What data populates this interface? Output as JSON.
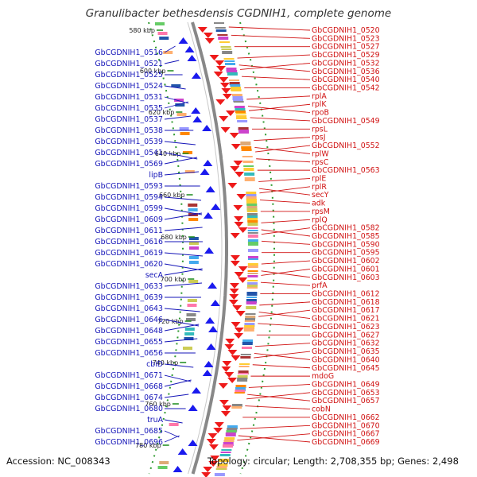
{
  "title": "Granulibacter bethesdensis CGDNIH1, complete genome",
  "footer": {
    "accession": "Accession: NC_008343",
    "summary": "Topology: circular; Length: 2,708,355 bp; Genes: 2,498"
  },
  "colors": {
    "left_label": "#1414b8",
    "right_label": "#d01010",
    "forward_arrow": "#1a1aee",
    "reverse_arrow": "#ee1a1a",
    "backbone": "#888888",
    "tick_dot": "#2e9a2e"
  },
  "scale_ticks": [
    "580 kbp",
    "600 kbp",
    "620 kbp",
    "640 kbp",
    "660 kbp",
    "680 kbp",
    "700 kbp",
    "720 kbp",
    "740 kbp",
    "760 kbp",
    "780 kbp"
  ],
  "left_labels": [
    "GbCGDNIH1_0516",
    "GbCGDNIH1_0521",
    "GbCGDNIH1_0525",
    "GbCGDNIH1_0524",
    "GbCGDNIH1_0531",
    "GbCGDNIH1_0535",
    "GbCGDNIH1_0537",
    "GbCGDNIH1_0538",
    "GbCGDNIH1_0539",
    "GbCGDNIH1_0541",
    "GbCGDNIH1_0569",
    "lipB",
    "GbCGDNIH1_0593",
    "GbCGDNIH1_0594",
    "GbCGDNIH1_0599",
    "GbCGDNIH1_0609",
    "GbCGDNIH1_0611",
    "GbCGDNIH1_0616",
    "GbCGDNIH1_0619",
    "GbCGDNIH1_0620",
    "secA",
    "GbCGDNIH1_0633",
    "GbCGDNIH1_0639",
    "GbCGDNIH1_0643",
    "GbCGDNIH1_0646",
    "GbCGDNIH1_0648",
    "GbCGDNIH1_0655",
    "GbCGDNIH1_0656",
    "cbiD",
    "GbCGDNIH1_0671",
    "GbCGDNIH1_0668",
    "GbCGDNIH1_0674",
    "GbCGDNIH1_0680",
    "truA",
    "GbCGDNIH1_0685",
    "GbCGDNIH1_0696"
  ],
  "right_labels": [
    "GbCGDNIH1_0520",
    "GbCGDNIH1_0523",
    "GbCGDNIH1_0527",
    "GbCGDNIH1_0529",
    "GbCGDNIH1_0532",
    "GbCGDNIH1_0536",
    "GbCGDNIH1_0540",
    "GbCGDNIH1_0542",
    "rplA",
    "rplK",
    "rpoB",
    "GbCGDNIH1_0549",
    "rpsL",
    "rpsJ",
    "GbCGDNIH1_0552",
    "rplW",
    "rpsC",
    "GbCGDNIH1_0563",
    "rplE",
    "rplR",
    "secY",
    "adk",
    "rpsM",
    "rplQ",
    "GbCGDNIH1_0582",
    "GbCGDNIH1_0585",
    "GbCGDNIH1_0590",
    "GbCGDNIH1_0595",
    "GbCGDNIH1_0602",
    "GbCGDNIH1_0601",
    "GbCGDNIH1_0603",
    "prfA",
    "GbCGDNIH1_0612",
    "GbCGDNIH1_0618",
    "GbCGDNIH1_0617",
    "GbCGDNIH1_0621",
    "GbCGDNIH1_0623",
    "GbCGDNIH1_0627",
    "GbCGDNIH1_0632",
    "GbCGDNIH1_0635",
    "GbCGDNIH1_0640",
    "GbCGDNIH1_0645",
    "mdoG",
    "GbCGDNIH1_0649",
    "GbCGDNIH1_0653",
    "GbCGDNIH1_0657",
    "cobN",
    "GbCGDNIH1_0662",
    "GbCGDNIH1_0670",
    "GbCGDNIH1_0667",
    "GbCGDNIH1_0669"
  ]
}
